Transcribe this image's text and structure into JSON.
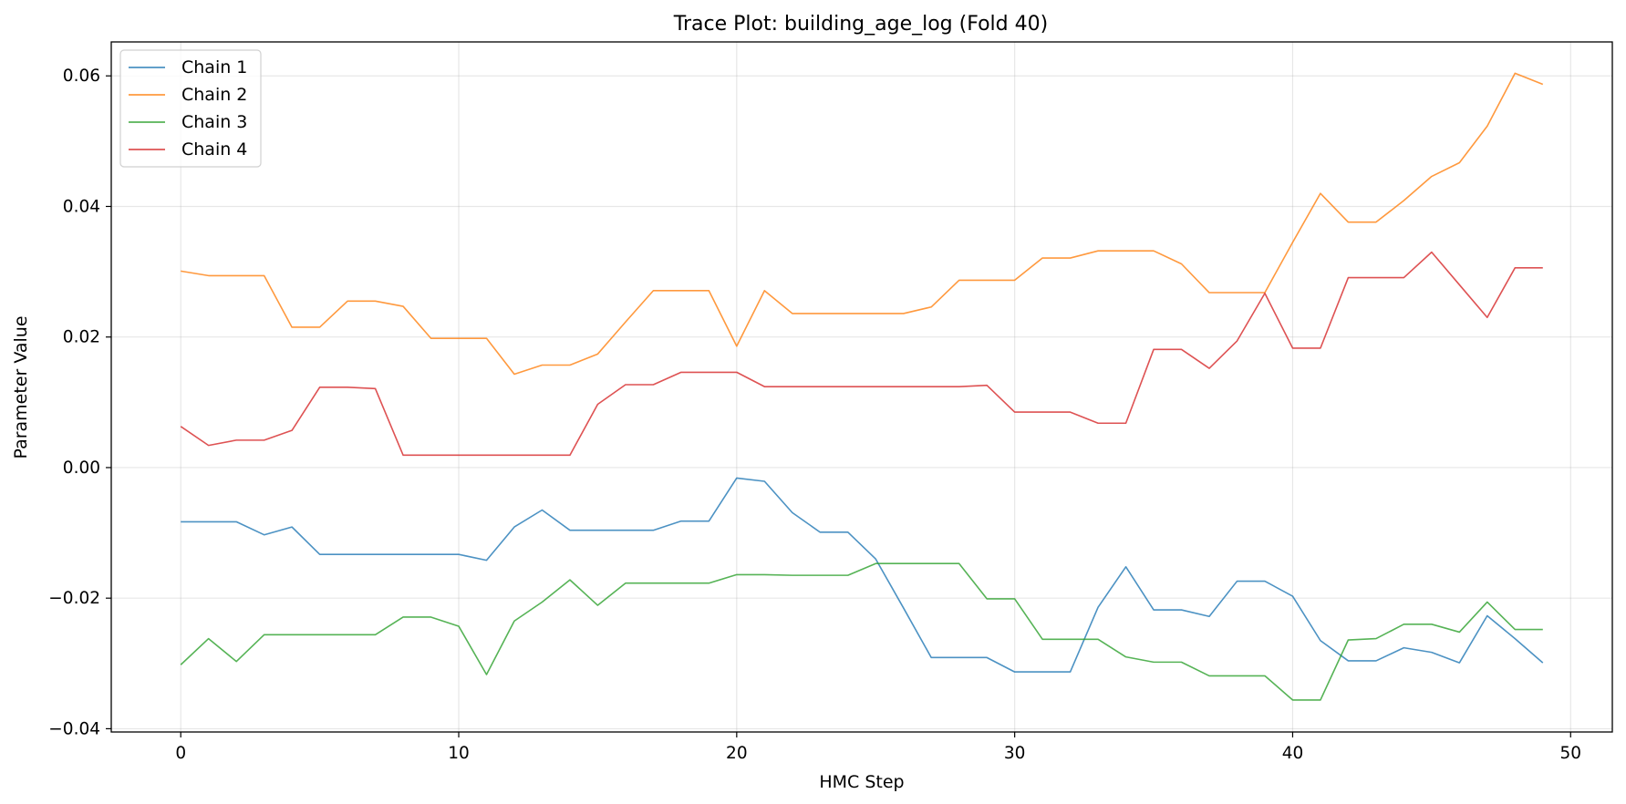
{
  "chart_data": {
    "type": "line",
    "title": "Trace Plot: building_age_log (Fold 40)",
    "xlabel": "HMC Step",
    "ylabel": "Parameter Value",
    "xlim": [
      -2.5,
      51.5
    ],
    "ylim": [
      -0.0405,
      0.0652
    ],
    "xticks": [
      0,
      10,
      20,
      30,
      40,
      50
    ],
    "xtick_labels": [
      "0",
      "10",
      "20",
      "30",
      "40",
      "50"
    ],
    "yticks": [
      -0.04,
      -0.02,
      0.0,
      0.02,
      0.04,
      0.06
    ],
    "ytick_labels": [
      "−0.04",
      "−0.02",
      "0.00",
      "0.02",
      "0.04",
      "0.06"
    ],
    "grid": true,
    "legend_position": "top-left",
    "x": [
      0,
      1,
      2,
      3,
      4,
      5,
      6,
      7,
      8,
      9,
      10,
      11,
      12,
      13,
      14,
      15,
      16,
      17,
      18,
      19,
      20,
      21,
      22,
      23,
      24,
      25,
      26,
      27,
      28,
      29,
      30,
      31,
      32,
      33,
      34,
      35,
      36,
      37,
      38,
      39,
      40,
      41,
      42,
      43,
      44,
      45,
      46,
      47,
      48,
      49
    ],
    "series": [
      {
        "name": "Chain 1",
        "color": "#1f77b4",
        "values": [
          -0.0083,
          -0.0083,
          -0.0083,
          -0.0103,
          -0.0091,
          -0.0133,
          -0.0133,
          -0.0133,
          -0.0133,
          -0.0133,
          -0.0133,
          -0.0142,
          -0.0091,
          -0.0065,
          -0.0096,
          -0.0096,
          -0.0096,
          -0.0096,
          -0.0082,
          -0.0082,
          -0.0016,
          -0.0021,
          -0.0069,
          -0.0099,
          -0.0099,
          -0.014,
          -0.0215,
          -0.0291,
          -0.0291,
          -0.0291,
          -0.0313,
          -0.0313,
          -0.0313,
          -0.0214,
          -0.0152,
          -0.0218,
          -0.0218,
          -0.0228,
          -0.0174,
          -0.0174,
          -0.0197,
          -0.0265,
          -0.0296,
          -0.0296,
          -0.0276,
          -0.0283,
          -0.0299,
          -0.0227,
          -0.0262,
          -0.0299
        ]
      },
      {
        "name": "Chain 2",
        "color": "#ff7f0e",
        "values": [
          0.0301,
          0.0294,
          0.0294,
          0.0294,
          0.0215,
          0.0215,
          0.0255,
          0.0255,
          0.0247,
          0.0198,
          0.0198,
          0.0198,
          0.0143,
          0.0157,
          0.0157,
          0.0174,
          0.0223,
          0.0271,
          0.0271,
          0.0271,
          0.0186,
          0.0271,
          0.0236,
          0.0236,
          0.0236,
          0.0236,
          0.0236,
          0.0246,
          0.0287,
          0.0287,
          0.0287,
          0.0321,
          0.0321,
          0.0332,
          0.0332,
          0.0332,
          0.0312,
          0.0268,
          0.0268,
          0.0268,
          0.0345,
          0.042,
          0.0376,
          0.0376,
          0.0409,
          0.0446,
          0.0467,
          0.0523,
          0.0604,
          0.0587
        ]
      },
      {
        "name": "Chain 3",
        "color": "#2ca02c",
        "values": [
          -0.0302,
          -0.0262,
          -0.0297,
          -0.0256,
          -0.0256,
          -0.0256,
          -0.0256,
          -0.0256,
          -0.0229,
          -0.0229,
          -0.0243,
          -0.0317,
          -0.0235,
          -0.0206,
          -0.0172,
          -0.0211,
          -0.0177,
          -0.0177,
          -0.0177,
          -0.0177,
          -0.0164,
          -0.0164,
          -0.0165,
          -0.0165,
          -0.0165,
          -0.0147,
          -0.0147,
          -0.0147,
          -0.0147,
          -0.0201,
          -0.0201,
          -0.0263,
          -0.0263,
          -0.0263,
          -0.029,
          -0.0298,
          -0.0298,
          -0.0319,
          -0.0319,
          -0.0319,
          -0.0356,
          -0.0356,
          -0.0264,
          -0.0262,
          -0.024,
          -0.024,
          -0.0252,
          -0.0206,
          -0.0248,
          -0.0248
        ]
      },
      {
        "name": "Chain 4",
        "color": "#d62728",
        "values": [
          0.0063,
          0.0034,
          0.0042,
          0.0042,
          0.0057,
          0.0123,
          0.0123,
          0.0121,
          0.0019,
          0.0019,
          0.0019,
          0.0019,
          0.0019,
          0.0019,
          0.0019,
          0.0097,
          0.0127,
          0.0127,
          0.0146,
          0.0146,
          0.0146,
          0.0124,
          0.0124,
          0.0124,
          0.0124,
          0.0124,
          0.0124,
          0.0124,
          0.0124,
          0.0126,
          0.0085,
          0.0085,
          0.0085,
          0.0068,
          0.0068,
          0.0181,
          0.0181,
          0.0152,
          0.0194,
          0.0267,
          0.0183,
          0.0183,
          0.0291,
          0.0291,
          0.0291,
          0.033,
          0.028,
          0.023,
          0.0306,
          0.0306
        ]
      }
    ]
  }
}
